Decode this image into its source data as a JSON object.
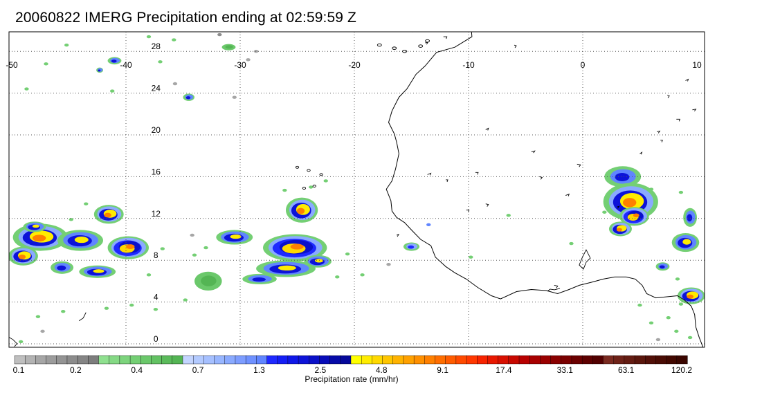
{
  "title": "20060822 IMERG Precipitation ending at 02:59:59 Z",
  "map": {
    "lon_range": [
      -50,
      10
    ],
    "lat_range": [
      -1,
      31
    ],
    "lon_ticks": [
      -50,
      -40,
      -30,
      -20,
      -10,
      0,
      10
    ],
    "lat_ticks": [
      0,
      4,
      8,
      12,
      16,
      20,
      24,
      28
    ],
    "grid": "dotted",
    "coastline_color": "#000000"
  },
  "colorbar": {
    "label": "Precipitation rate (mm/hr)",
    "tick_labels": [
      "0.1",
      "0.2",
      "0.4",
      "0.7",
      "1.3",
      "2.5",
      "4.8",
      "9.1",
      "17.4",
      "33.1",
      "63.1",
      "120.2"
    ],
    "colors": [
      "#bfbfbf",
      "#b3b3b3",
      "#a6a6a6",
      "#9c9c9c",
      "#949494",
      "#8c8c8c",
      "#858585",
      "#7d7d7d",
      "#8fe08f",
      "#85d985",
      "#7dd47d",
      "#74cf74",
      "#6bc86b",
      "#63c263",
      "#5bbb5b",
      "#54b554",
      "#c4d5ff",
      "#b3caff",
      "#a6c0ff",
      "#98b6ff",
      "#8aaaff",
      "#7d9dff",
      "#6f91ff",
      "#6085ff",
      "#1e29ff",
      "#141ef5",
      "#0f17e8",
      "#0d13d8",
      "#0a10c8",
      "#080cb8",
      "#060aa8",
      "#05089a",
      "#ffff00",
      "#ffec00",
      "#ffd900",
      "#ffc600",
      "#ffb300",
      "#ffa100",
      "#ff9000",
      "#ff8000",
      "#ff6e00",
      "#ff5c00",
      "#ff4a00",
      "#ff3800",
      "#f72400",
      "#e81800",
      "#d81000",
      "#c80800",
      "#b80000",
      "#a80000",
      "#9a0000",
      "#8a0000",
      "#7a0000",
      "#6c0000",
      "#5e0000",
      "#520000",
      "#7a2a20",
      "#6e2218",
      "#641c12",
      "#5a160c",
      "#521008",
      "#4a0c04",
      "#420800",
      "#3a0600"
    ]
  },
  "precip_features": [
    {
      "lon": -47.5,
      "lat": 10.2,
      "rx": 2.4,
      "ry": 1.3,
      "peak": 5
    },
    {
      "lon": -44.0,
      "lat": 9.9,
      "rx": 2.0,
      "ry": 1.0,
      "peak": 4
    },
    {
      "lon": -39.8,
      "lat": 9.2,
      "rx": 1.8,
      "ry": 1.1,
      "peak": 6
    },
    {
      "lon": -41.5,
      "lat": 12.4,
      "rx": 1.3,
      "ry": 0.9,
      "peak": 5
    },
    {
      "lon": -49.0,
      "lat": 8.4,
      "rx": 1.3,
      "ry": 0.9,
      "peak": 5
    },
    {
      "lon": -42.5,
      "lat": 6.9,
      "rx": 1.6,
      "ry": 0.6,
      "peak": 4
    },
    {
      "lon": -45.6,
      "lat": 7.3,
      "rx": 1.0,
      "ry": 0.6,
      "peak": 3
    },
    {
      "lon": -48.0,
      "lat": 11.2,
      "rx": 1.0,
      "ry": 0.5,
      "peak": 4
    },
    {
      "lon": -30.5,
      "lat": 10.2,
      "rx": 1.6,
      "ry": 0.7,
      "peak": 4
    },
    {
      "lon": -25.2,
      "lat": 9.2,
      "rx": 2.8,
      "ry": 1.3,
      "peak": 6
    },
    {
      "lon": -24.6,
      "lat": 12.8,
      "rx": 1.4,
      "ry": 1.2,
      "peak": 5
    },
    {
      "lon": -26.0,
      "lat": 7.2,
      "rx": 2.6,
      "ry": 0.8,
      "peak": 4
    },
    {
      "lon": -28.3,
      "lat": 6.2,
      "rx": 1.5,
      "ry": 0.5,
      "peak": 3
    },
    {
      "lon": -23.2,
      "lat": 7.9,
      "rx": 1.2,
      "ry": 0.6,
      "peak": 4
    },
    {
      "lon": -32.8,
      "lat": 6.0,
      "rx": 1.2,
      "ry": 0.9,
      "peak": 1
    },
    {
      "lon": -15.0,
      "lat": 9.3,
      "rx": 0.7,
      "ry": 0.4,
      "peak": 2
    },
    {
      "lon": 3.5,
      "lat": 16.0,
      "rx": 1.6,
      "ry": 1.0,
      "peak": 3
    },
    {
      "lon": 4.2,
      "lat": 13.6,
      "rx": 2.4,
      "ry": 1.8,
      "peak": 5
    },
    {
      "lon": 4.5,
      "lat": 12.2,
      "rx": 1.3,
      "ry": 0.9,
      "peak": 6
    },
    {
      "lon": 3.3,
      "lat": 11.0,
      "rx": 1.0,
      "ry": 0.7,
      "peak": 5
    },
    {
      "lon": 9.0,
      "lat": 9.7,
      "rx": 1.2,
      "ry": 0.9,
      "peak": 4
    },
    {
      "lon": 9.4,
      "lat": 12.1,
      "rx": 0.6,
      "ry": 0.9,
      "peak": 3
    },
    {
      "lon": 9.5,
      "lat": 4.6,
      "rx": 1.2,
      "ry": 0.8,
      "peak": 5
    },
    {
      "lon": 7.0,
      "lat": 7.4,
      "rx": 0.6,
      "ry": 0.4,
      "peak": 3
    },
    {
      "lon": -41.0,
      "lat": 27.1,
      "rx": 0.6,
      "ry": 0.35,
      "peak": 3
    },
    {
      "lon": -34.5,
      "lat": 23.6,
      "rx": 0.5,
      "ry": 0.35,
      "peak": 3
    },
    {
      "lon": -42.3,
      "lat": 26.2,
      "rx": 0.3,
      "ry": 0.25,
      "peak": 3
    },
    {
      "lon": -31.0,
      "lat": 28.4,
      "rx": 0.6,
      "ry": 0.3,
      "peak": 1
    }
  ],
  "light_scatter": [
    {
      "lon": -41.2,
      "lat": 24.2,
      "c": "#74cf74"
    },
    {
      "lon": -45.2,
      "lat": 28.6,
      "c": "#74cf74"
    },
    {
      "lon": -38.0,
      "lat": 29.4,
      "c": "#74cf74"
    },
    {
      "lon": -37.0,
      "lat": 27.0,
      "c": "#74cf74"
    },
    {
      "lon": -35.8,
      "lat": 29.1,
      "c": "#74cf74"
    },
    {
      "lon": -31.8,
      "lat": 29.6,
      "c": "#8c8c8c"
    },
    {
      "lon": -28.6,
      "lat": 28.0,
      "c": "#a6a6a6"
    },
    {
      "lon": -29.3,
      "lat": 27.2,
      "c": "#a6a6a6"
    },
    {
      "lon": -48.7,
      "lat": 24.4,
      "c": "#74cf74"
    },
    {
      "lon": -47.0,
      "lat": 26.8,
      "c": "#74cf74"
    },
    {
      "lon": -35.7,
      "lat": 24.9,
      "c": "#a6a6a6"
    },
    {
      "lon": -30.5,
      "lat": 23.6,
      "c": "#a6a6a6"
    },
    {
      "lon": -34.2,
      "lat": 10.4,
      "c": "#a6a6a6"
    },
    {
      "lon": -33.0,
      "lat": 9.2,
      "c": "#74cf74"
    },
    {
      "lon": -34.0,
      "lat": 8.5,
      "c": "#74cf74"
    },
    {
      "lon": -22.5,
      "lat": 15.6,
      "c": "#74cf74"
    },
    {
      "lon": -23.8,
      "lat": 15.0,
      "c": "#74cf74"
    },
    {
      "lon": -20.6,
      "lat": 8.6,
      "c": "#74cf74"
    },
    {
      "lon": -21.5,
      "lat": 6.4,
      "c": "#74cf74"
    },
    {
      "lon": -26.1,
      "lat": 14.7,
      "c": "#74cf74"
    },
    {
      "lon": -45.5,
      "lat": 3.1,
      "c": "#74cf74"
    },
    {
      "lon": -41.7,
      "lat": 3.4,
      "c": "#74cf74"
    },
    {
      "lon": -39.5,
      "lat": 3.7,
      "c": "#74cf74"
    },
    {
      "lon": -37.4,
      "lat": 3.3,
      "c": "#74cf74"
    },
    {
      "lon": -34.8,
      "lat": 4.2,
      "c": "#74cf74"
    },
    {
      "lon": -47.7,
      "lat": 2.6,
      "c": "#74cf74"
    },
    {
      "lon": -49.2,
      "lat": 0.2,
      "c": "#74cf74"
    },
    {
      "lon": -47.3,
      "lat": 1.2,
      "c": "#a6a6a6"
    },
    {
      "lon": -36.8,
      "lat": 9.1,
      "c": "#74cf74"
    },
    {
      "lon": -38.0,
      "lat": 6.6,
      "c": "#74cf74"
    },
    {
      "lon": -43.5,
      "lat": 13.4,
      "c": "#74cf74"
    },
    {
      "lon": -44.8,
      "lat": 11.9,
      "c": "#74cf74"
    },
    {
      "lon": -19.3,
      "lat": 6.6,
      "c": "#74cf74"
    },
    {
      "lon": -17.0,
      "lat": 7.6,
      "c": "#a6a6a6"
    },
    {
      "lon": -13.5,
      "lat": 11.4,
      "c": "#6085ff"
    },
    {
      "lon": -9.8,
      "lat": 8.3,
      "c": "#74cf74"
    },
    {
      "lon": -1.0,
      "lat": 9.6,
      "c": "#74cf74"
    },
    {
      "lon": -6.5,
      "lat": 12.3,
      "c": "#74cf74"
    },
    {
      "lon": 7.5,
      "lat": 2.5,
      "c": "#74cf74"
    },
    {
      "lon": 6.0,
      "lat": 2.0,
      "c": "#74cf74"
    },
    {
      "lon": 8.2,
      "lat": 1.2,
      "c": "#74cf74"
    },
    {
      "lon": 6.6,
      "lat": 0.4,
      "c": "#a6a6a6"
    },
    {
      "lon": 9.4,
      "lat": 0.6,
      "c": "#74cf74"
    },
    {
      "lon": 5.0,
      "lat": 3.7,
      "c": "#74cf74"
    },
    {
      "lon": 8.6,
      "lat": 3.8,
      "c": "#74cf74"
    },
    {
      "lon": 8.3,
      "lat": 6.2,
      "c": "#74cf74"
    },
    {
      "lon": 1.9,
      "lat": 12.6,
      "c": "#74cf74"
    },
    {
      "lon": 8.6,
      "lat": 14.5,
      "c": "#74cf74"
    },
    {
      "lon": 6.0,
      "lat": 14.8,
      "c": "#74cf74"
    }
  ]
}
